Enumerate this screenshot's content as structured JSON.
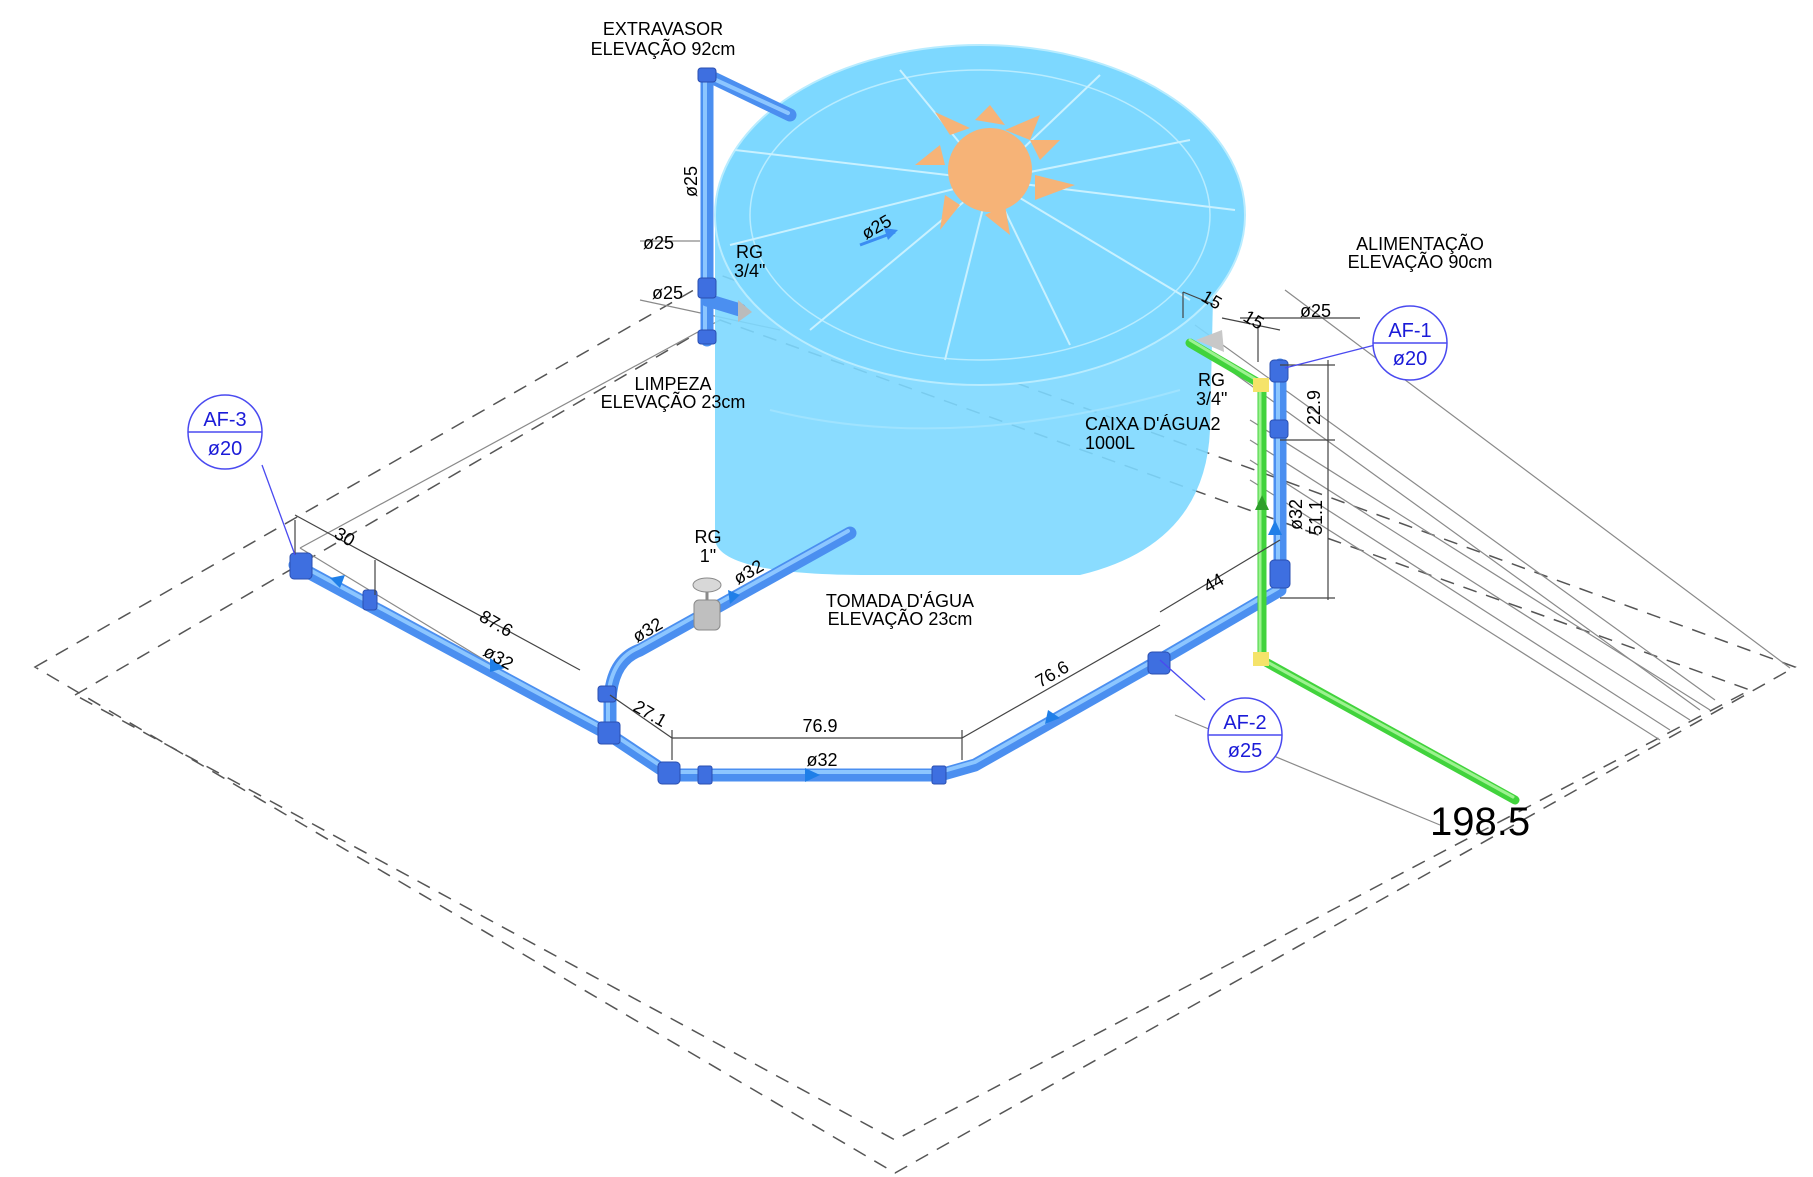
{
  "labels": {
    "extravasor_title": "EXTRAVASOR",
    "extravasor_elev": "ELEVAÇÃO 92cm",
    "alimentacao_title": "ALIMENTAÇÃO",
    "alimentacao_elev": "ELEVAÇÃO 90cm",
    "limpeza_title": "LIMPEZA",
    "limpeza_elev": "ELEVAÇÃO 23cm",
    "tomada_title": "TOMADA D'ÁGUA",
    "tomada_elev": "ELEVAÇÃO 23cm",
    "caixa_title": "CAIXA D'ÁGUA2",
    "caixa_capacity": "1000L",
    "rg_left": "RG",
    "rg_left_size": "3/4\"",
    "rg_right": "RG",
    "rg_right_size": "3/4\"",
    "rg_main": "RG",
    "rg_main_size": "1\""
  },
  "diameters": {
    "extravasor_vertical": "ø25",
    "tank_inlet": "ø25",
    "limpeza_upper": "ø25",
    "limpeza_lower": "ø25",
    "alimentacao": "ø25",
    "riser": "ø32",
    "main_left": "ø32",
    "main_bottom": "ø32",
    "tomada_upper": "ø32",
    "tomada_lower": "ø32"
  },
  "dimensions": {
    "d30": "30",
    "d87_6": "87.6",
    "d27_1": "27.1",
    "d76_9": "76.9",
    "d76_6": "76.6",
    "d44": "44",
    "d15a": "15",
    "d15b": "15",
    "d22_9": "22.9",
    "d51_1": "51.1",
    "d198_5": "198.5"
  },
  "tags": {
    "af1": {
      "id": "AF-1",
      "diameter": "ø20"
    },
    "af2": {
      "id": "AF-2",
      "diameter": "ø25"
    },
    "af3": {
      "id": "AF-3",
      "diameter": "ø20"
    }
  },
  "colors": {
    "tank": "#7dd8ff",
    "tank_lid_star": "#f6b377",
    "pipe_cold_water": "#4b8ff0",
    "pipe_feed": "#41d33c",
    "tag_text": "#1b1bd8"
  }
}
